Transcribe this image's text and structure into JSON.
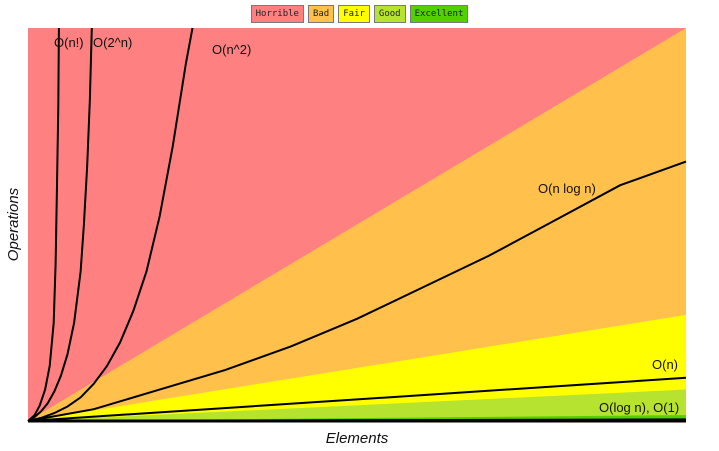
{
  "legend": [
    {
      "label": "Horrible",
      "color": "#ff8080"
    },
    {
      "label": "Bad",
      "color": "#ffc04c"
    },
    {
      "label": "Fair",
      "color": "#ffff00"
    },
    {
      "label": "Good",
      "color": "#b6e32f"
    },
    {
      "label": "Excellent",
      "color": "#53d000"
    }
  ],
  "chart_data": {
    "type": "area",
    "xlabel": "Elements",
    "ylabel": "Operations",
    "grid": false,
    "legend_position": "top-center",
    "xlim": [
      0,
      100
    ],
    "ylim": [
      0,
      100
    ],
    "regions": [
      {
        "rating": "Excellent",
        "color": "#53d000",
        "upper": [
          [
            0,
            0
          ],
          [
            100,
            1.5
          ]
        ]
      },
      {
        "rating": "Good",
        "color": "#b6e32f",
        "upper": [
          [
            0,
            0
          ],
          [
            100,
            8
          ]
        ]
      },
      {
        "rating": "Fair",
        "color": "#ffff00",
        "upper": [
          [
            0,
            0
          ],
          [
            100,
            27
          ]
        ]
      },
      {
        "rating": "Bad",
        "color": "#ffc04c",
        "upper": [
          [
            0,
            0
          ],
          [
            100,
            100
          ]
        ]
      },
      {
        "rating": "Horrible",
        "color": "#ff8080",
        "upper": [
          [
            0,
            0
          ],
          [
            0,
            100
          ],
          [
            100,
            100
          ]
        ]
      }
    ],
    "series": [
      {
        "name": "O(log n), O(1)",
        "label": "O(log n), O(1)",
        "points": [
          [
            0,
            0
          ],
          [
            100,
            0.4
          ]
        ]
      },
      {
        "name": "O(n)",
        "label": "O(n)",
        "points": [
          [
            0,
            0
          ],
          [
            100,
            11
          ]
        ]
      },
      {
        "name": "O(n log n)",
        "label": "O(n log n)",
        "points": [
          [
            0,
            0
          ],
          [
            10,
            3
          ],
          [
            20,
            8
          ],
          [
            30,
            13
          ],
          [
            40,
            19
          ],
          [
            50,
            26
          ],
          [
            60,
            34
          ],
          [
            70,
            42
          ],
          [
            80,
            51
          ],
          [
            90,
            60
          ],
          [
            100,
            66
          ]
        ]
      },
      {
        "name": "O(n^2)",
        "label": "O(n^2)",
        "points": [
          [
            0,
            0
          ],
          [
            2,
            0.8
          ],
          [
            4,
            2
          ],
          [
            6,
            3.7
          ],
          [
            8,
            6
          ],
          [
            10,
            9.5
          ],
          [
            12,
            14
          ],
          [
            14,
            20
          ],
          [
            16,
            28
          ],
          [
            18,
            38
          ],
          [
            20,
            52
          ],
          [
            22,
            70
          ],
          [
            24,
            91
          ],
          [
            25,
            100
          ]
        ]
      },
      {
        "name": "O(2^n)",
        "label": "O(2^n)",
        "points": [
          [
            0,
            0
          ],
          [
            1,
            1
          ],
          [
            2,
            2.5
          ],
          [
            3,
            4.5
          ],
          [
            4,
            7.5
          ],
          [
            5,
            11.5
          ],
          [
            6,
            17
          ],
          [
            7,
            25
          ],
          [
            8,
            38
          ],
          [
            8.5,
            50
          ],
          [
            9,
            65
          ],
          [
            9.4,
            82
          ],
          [
            9.7,
            100
          ]
        ]
      },
      {
        "name": "O(n!)",
        "label": "O(n!)",
        "points": [
          [
            0,
            0
          ],
          [
            1,
            1.5
          ],
          [
            1.8,
            4
          ],
          [
            2.6,
            8
          ],
          [
            3.3,
            14
          ],
          [
            3.9,
            25
          ],
          [
            4.2,
            40
          ],
          [
            4.4,
            60
          ],
          [
            4.6,
            80
          ],
          [
            4.7,
            100
          ]
        ]
      }
    ]
  }
}
